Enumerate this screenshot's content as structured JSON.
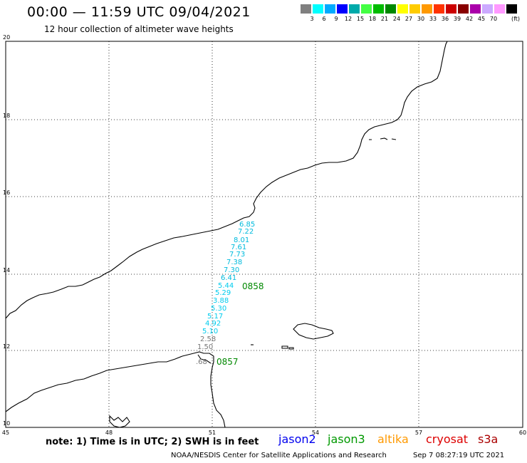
{
  "header": {
    "title": "00:00 — 11:59 UTC 09/04/2021",
    "subtitle": "12 hour collection of altimeter wave heights"
  },
  "legend": {
    "colors": [
      "#808080",
      "#00ffff",
      "#00aaff",
      "#0000ff",
      "#00aaaa",
      "#44ff44",
      "#00bb00",
      "#008800",
      "#ffff00",
      "#ffcc00",
      "#ff9900",
      "#ff3300",
      "#cc0000",
      "#880000",
      "#aa00aa",
      "#ccaaff",
      "#ff99ff",
      "#000000"
    ],
    "labels": [
      "3",
      "6",
      "9",
      "12",
      "15",
      "18",
      "21",
      "24",
      "27",
      "30",
      "33",
      "36",
      "39",
      "42",
      "45",
      "70"
    ],
    "unit": "(ft)"
  },
  "map": {
    "y_ticks": [
      "20",
      "18",
      "16",
      "14",
      "12",
      "10"
    ],
    "x_ticks": [
      "45",
      "48",
      "51",
      "54",
      "57",
      "60"
    ],
    "grid": true,
    "wave_heights": [
      {
        "value": "6.85",
        "color": "#00bbdd"
      },
      {
        "value": "7.22",
        "color": "#00bbdd"
      },
      {
        "value": "8.01",
        "color": "#00bbdd"
      },
      {
        "value": "7.61",
        "color": "#00bbdd"
      },
      {
        "value": "7.73",
        "color": "#00bbdd"
      },
      {
        "value": "7.38",
        "color": "#00bbdd"
      },
      {
        "value": "7.30",
        "color": "#00bbdd"
      },
      {
        "value": "6.41",
        "color": "#00bbdd"
      },
      {
        "value": "5.44",
        "color": "#00ccee"
      },
      {
        "value": "5.29",
        "color": "#00ccee"
      },
      {
        "value": "3.88",
        "color": "#00ccee"
      },
      {
        "value": "5.30",
        "color": "#00ccee"
      },
      {
        "value": "5.17",
        "color": "#00ccee"
      },
      {
        "value": "4.92",
        "color": "#00ccee"
      },
      {
        "value": "5.10",
        "color": "#00ccee"
      },
      {
        "value": "2.58",
        "color": "#777777"
      },
      {
        "value": "1.50",
        "color": "#777777"
      },
      {
        "value": ".68",
        "color": "#777777"
      }
    ],
    "pass_times": [
      {
        "value": "0858",
        "color": "#008800"
      },
      {
        "value": "0857",
        "color": "#008800"
      }
    ]
  },
  "footer": {
    "note": "note: 1) Time is in UTC; 2) SWH is in feet",
    "satellites": [
      {
        "name": "jason2",
        "color": "#0000ee"
      },
      {
        "name": "jason3",
        "color": "#009900"
      },
      {
        "name": "altika",
        "color": "#ff9900"
      },
      {
        "name": "cryosat",
        "color": "#dd0000"
      },
      {
        "name": "s3a",
        "color": "#aa0000"
      }
    ],
    "credit": "NOAA/NESDIS Center for Satellite Applications and Research",
    "timestamp": "Sep  7 08:27:19 UTC 2021"
  }
}
